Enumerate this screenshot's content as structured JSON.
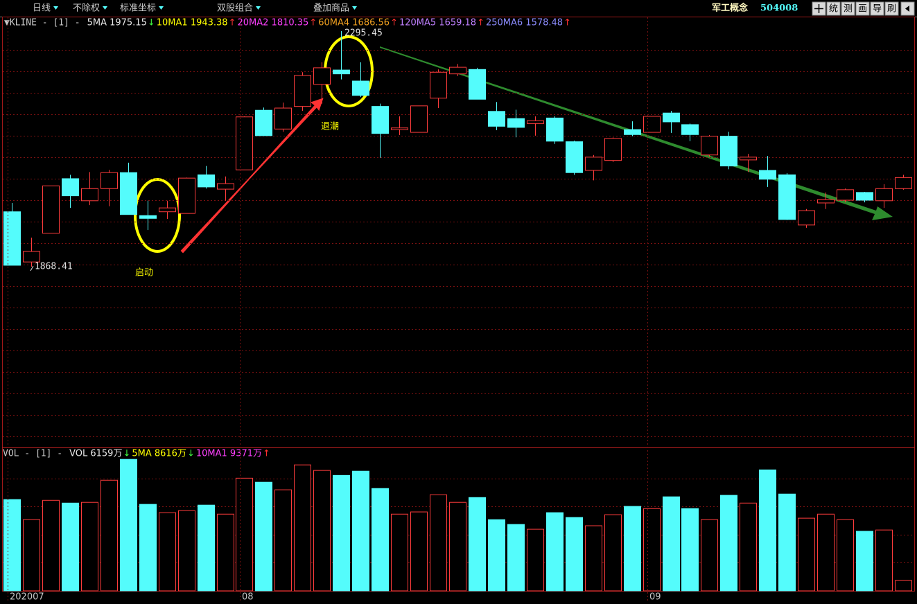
{
  "toolbar": {
    "items": [
      "日线",
      "不除权",
      "标准坐标",
      "双股组合",
      "叠加商品"
    ],
    "name": "军工概念",
    "code": "504008",
    "buttons": [
      "统",
      "测",
      "画",
      "导",
      "刷"
    ]
  },
  "chart_data": {
    "type": "candlestick",
    "legend": {
      "label": "▼KLINE - [1] -",
      "items": [
        {
          "text": "5MA 1975.15",
          "arrow": "↓",
          "color": "#e8e8e8"
        },
        {
          "text": "10MA1 1943.38",
          "arrow": "↑",
          "color": "#ffff00"
        },
        {
          "text": "20MA2 1810.35",
          "arrow": "↑",
          "color": "#ff40ff"
        },
        {
          "text": "60MA4 1686.56",
          "arrow": "↑",
          "color": "#f0a020"
        },
        {
          "text": "120MA5 1659.18",
          "arrow": "↑",
          "color": "#c080ff"
        },
        {
          "text": "250MA6 1578.48",
          "arrow": "↑",
          "color": "#8c8cff"
        }
      ]
    },
    "categories": [
      "202007",
      null,
      null,
      null,
      null,
      null,
      null,
      null,
      null,
      null,
      null,
      null,
      "08",
      null,
      null,
      null,
      null,
      null,
      null,
      null,
      null,
      null,
      null,
      null,
      null,
      null,
      null,
      null,
      null,
      null,
      null,
      null,
      null,
      "09",
      null,
      null,
      null,
      null,
      null,
      null,
      null,
      null,
      null,
      null,
      null,
      null,
      null
    ],
    "ohlc": [
      [
        1968,
        1984,
        1871,
        1871
      ],
      [
        1877,
        1921,
        1868.41,
        1896
      ],
      [
        1929,
        2015,
        1929,
        2015
      ],
      [
        2028,
        2035,
        1975,
        1997
      ],
      [
        1988,
        2040,
        1980,
        2010
      ],
      [
        2010,
        2044,
        1978,
        2039
      ],
      [
        2039,
        2057,
        1963,
        1963
      ],
      [
        1961,
        1988,
        1935,
        1956
      ],
      [
        1968,
        1988,
        1955,
        1975
      ],
      [
        1965,
        2030,
        1965,
        2029
      ],
      [
        2035,
        2051,
        2010,
        2013
      ],
      [
        2009,
        2032,
        1988,
        2019
      ],
      [
        2044,
        2141,
        2044,
        2140
      ],
      [
        2152,
        2157,
        2106,
        2106
      ],
      [
        2118,
        2166,
        2113,
        2156
      ],
      [
        2159,
        2221,
        2151,
        2215
      ],
      [
        2199,
        2239,
        2164,
        2229
      ],
      [
        2225,
        2295.45,
        2208,
        2218
      ],
      [
        2205,
        2239,
        2176,
        2179
      ],
      [
        2159,
        2164,
        2066,
        2110
      ],
      [
        2117,
        2141,
        2107,
        2120
      ],
      [
        2112,
        2160,
        2112,
        2160
      ],
      [
        2174,
        2226,
        2156,
        2221
      ],
      [
        2218,
        2236,
        2214,
        2230
      ],
      [
        2226,
        2229,
        2172,
        2172
      ],
      [
        2150,
        2167,
        2116,
        2123
      ],
      [
        2137,
        2153,
        2103,
        2121
      ],
      [
        2128,
        2141,
        2106,
        2133
      ],
      [
        2138,
        2141,
        2091,
        2096
      ],
      [
        2095,
        2097,
        2035,
        2039
      ],
      [
        2043,
        2071,
        2025,
        2067
      ],
      [
        2061,
        2103,
        2058,
        2101
      ],
      [
        2117,
        2132,
        2105,
        2108
      ],
      [
        2112,
        2141,
        2112,
        2141
      ],
      [
        2147,
        2151,
        2111,
        2131
      ],
      [
        2126,
        2128,
        2096,
        2108
      ],
      [
        2071,
        2107,
        2068,
        2105
      ],
      [
        2105,
        2113,
        2045,
        2051
      ],
      [
        2062,
        2073,
        2040,
        2067
      ],
      [
        2043,
        2069,
        2013,
        2027
      ],
      [
        2035,
        2038,
        1953,
        1954
      ],
      [
        1944,
        1973,
        1939,
        1970
      ],
      [
        1984,
        2003,
        1973,
        1990
      ],
      [
        1989,
        2010,
        1985,
        2008
      ],
      [
        2003,
        2004,
        1985,
        1989
      ],
      [
        1988,
        2018,
        1975,
        2010
      ],
      [
        2010,
        2035,
        2008,
        2030
      ]
    ],
    "up_color": "#ff3c3c",
    "down_color": "#54fcfc",
    "ylim": [
      1541.9,
      2308
    ],
    "annotations": [
      {
        "text": "启动",
        "color": "#ffff00"
      },
      {
        "text": "退潮",
        "color": "#ffff00"
      }
    ],
    "volume": {
      "type": "bar",
      "legend": {
        "label": "VOL - [1] -",
        "items": [
          {
            "text": "VOL 6159万",
            "arrow": "↓",
            "color": "#e8e8e8"
          },
          {
            "text": "5MA 8616万",
            "arrow": "↓",
            "color": "#ffff00"
          },
          {
            "text": "10MA1 9371万",
            "arrow": "↑",
            "color": "#ff40ff"
          }
        ]
      },
      "values": [
        10550,
        9460,
        10510,
        10360,
        10400,
        11600,
        12730,
        10290,
        9840,
        9950,
        10250,
        9760,
        11710,
        11490,
        11080,
        12430,
        12130,
        11860,
        12090,
        11150,
        9760,
        9880,
        10810,
        10400,
        10660,
        9460,
        9200,
        8940,
        9840,
        9580,
        9130,
        9730,
        10180,
        10060,
        10700,
        10060,
        9460,
        10780,
        10360,
        12160,
        10850,
        9540,
        9760,
        9460,
        8830,
        8900,
        6159
      ],
      "ylim": [
        5600,
        13000
      ]
    }
  }
}
